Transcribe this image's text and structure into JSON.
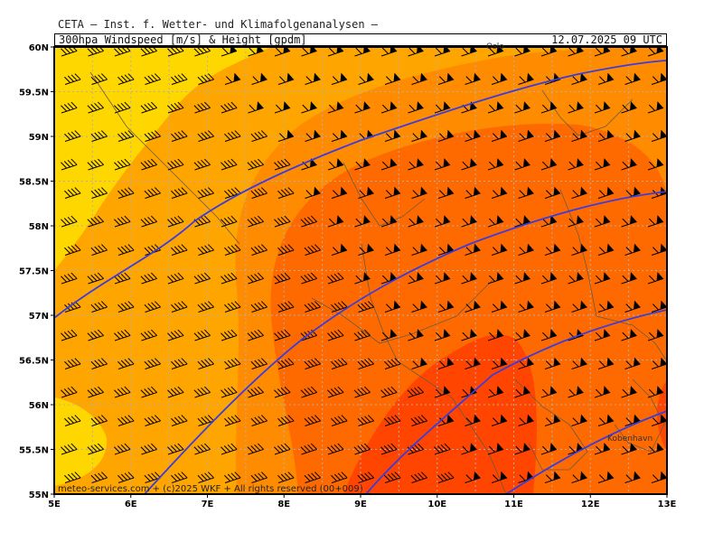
{
  "header": {
    "institute": "CETA – Inst. f. Wetter- und Klimafolgenanalysen –",
    "parameter": "300hpa Windspeed [m/s] & Height [gpdm]",
    "valid_time": "12.07.2025 09 UTC"
  },
  "map": {
    "lon_range": [
      5,
      13
    ],
    "lat_range": [
      55,
      60
    ],
    "x_ticks": [
      "5E",
      "6E",
      "7E",
      "8E",
      "9E",
      "10E",
      "11E",
      "12E",
      "13E"
    ],
    "y_ticks": [
      "60N",
      "59.5N",
      "59N",
      "58.5N",
      "58N",
      "57.5N",
      "57N",
      "56.5N",
      "56N",
      "55.5N",
      "55N"
    ],
    "grid": "dotted",
    "wind_barb_color": "#000000",
    "contour_color": "#3c3cdc",
    "colors": {
      "band_light": "#ffd700",
      "band_mid": "#ffa500",
      "band_high": "#ff8c00",
      "band_higher": "#ff6a00",
      "band_highest": "#ff4500",
      "land_outline": "#6b5a44"
    },
    "cities": [
      {
        "name": "Oslo",
        "lon": 10.75,
        "lat": 59.92
      },
      {
        "name": "Kobenhavn",
        "lon": 12.55,
        "lat": 55.68
      }
    ]
  },
  "footer": {
    "copyright": "meteo-services.com + (c)2025 WKF + All rights reserved (00+009)"
  }
}
